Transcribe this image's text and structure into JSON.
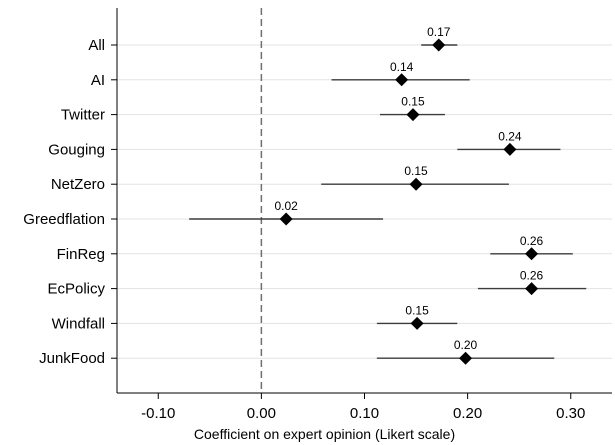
{
  "chart_data": {
    "type": "scatter",
    "title": "",
    "xlabel": "Coefficient on expert opinion (Likert scale)",
    "ylabel": "",
    "xlim": [
      -0.14,
      0.34
    ],
    "xticks": [
      -0.1,
      0.0,
      0.1,
      0.2,
      0.3
    ],
    "xtick_labels": [
      "-0.10",
      "0.00",
      "0.10",
      "0.20",
      "0.30"
    ],
    "reference_line": {
      "x": 0.0,
      "style": "dashed"
    },
    "grid": "horizontal",
    "marker": "diamond",
    "categories": [
      "All",
      "AI",
      "Twitter",
      "Gouging",
      "NetZero",
      "Greedflation",
      "FinReg",
      "EcPolicy",
      "Windfall",
      "JunkFood"
    ],
    "estimates": [
      0.172,
      0.136,
      0.147,
      0.241,
      0.15,
      0.024,
      0.262,
      0.262,
      0.151,
      0.198
    ],
    "labels": [
      "0.17",
      "0.14",
      "0.15",
      "0.24",
      "0.15",
      "0.02",
      "0.26",
      "0.26",
      "0.15",
      "0.20"
    ],
    "ci_low": [
      0.155,
      0.068,
      0.115,
      0.19,
      0.058,
      -0.07,
      0.222,
      0.21,
      0.112,
      0.112
    ],
    "ci_high": [
      0.19,
      0.202,
      0.178,
      0.29,
      0.24,
      0.118,
      0.302,
      0.315,
      0.19,
      0.284
    ]
  }
}
